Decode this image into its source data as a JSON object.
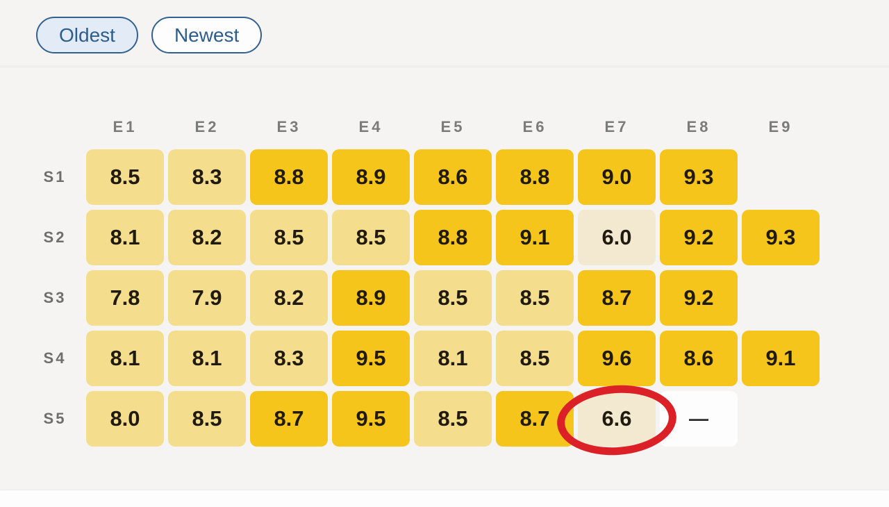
{
  "toolbar": {
    "buttons": [
      {
        "label": "Oldest",
        "selected": true
      },
      {
        "label": "Newest",
        "selected": false
      }
    ]
  },
  "chart_data": {
    "type": "heatmap",
    "columns": [
      "E1",
      "E2",
      "E3",
      "E4",
      "E5",
      "E6",
      "E7",
      "E8",
      "E9"
    ],
    "rows": [
      "S1",
      "S2",
      "S3",
      "S4",
      "S5"
    ],
    "values": [
      [
        8.5,
        8.3,
        8.8,
        8.9,
        8.6,
        8.8,
        9.0,
        9.3,
        null
      ],
      [
        8.1,
        8.2,
        8.5,
        8.5,
        8.8,
        9.1,
        6.0,
        9.2,
        9.3
      ],
      [
        7.8,
        7.9,
        8.2,
        8.9,
        8.5,
        8.5,
        8.7,
        9.2,
        null
      ],
      [
        8.1,
        8.1,
        8.3,
        9.5,
        8.1,
        8.5,
        9.6,
        8.6,
        9.1
      ],
      [
        8.0,
        8.5,
        8.7,
        9.5,
        8.5,
        8.7,
        6.6,
        "—",
        null
      ]
    ],
    "value_scale": {
      "min": 0,
      "max": 10
    },
    "color_thresholds": [
      {
        "min": 8.6,
        "color": "#F5C51B",
        "name": "high"
      },
      {
        "min": 7.0,
        "color": "#F4DE8D",
        "name": "medium"
      },
      {
        "min": 0,
        "color": "#F2E9D0",
        "name": "low"
      }
    ],
    "no_rating_color": "#FDFDFD",
    "annotation": {
      "shape": "red-ellipse",
      "row": "S5",
      "column": "E7",
      "value": 6.6,
      "color": "#DB2127"
    }
  },
  "palette": {
    "page_bg": "#F5F4F2",
    "button_border": "#33618F",
    "button_text": "#2C5D8C",
    "button_selected_bg": "#E3ECF6",
    "header_text": "#7B7B7B",
    "cell_text": "#211A0E"
  }
}
